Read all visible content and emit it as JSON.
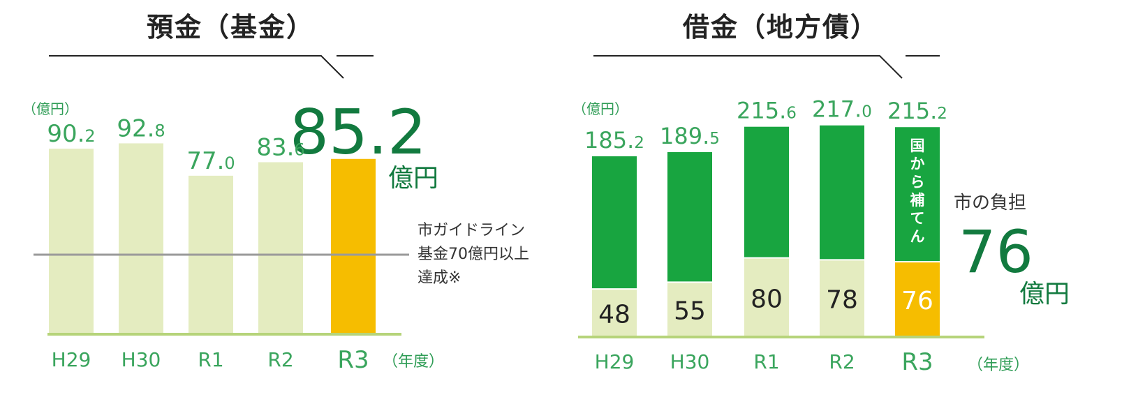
{
  "colors": {
    "light_bar": "#e4ecc0",
    "highlight_bar": "#f6bd00",
    "green_bar": "#18a540",
    "label_green": "#3aa55d",
    "dark_green": "#127a3f",
    "axis_line": "#b6d47a",
    "guide_line": "#9a9a9a"
  },
  "chart_data": [
    {
      "type": "bar",
      "title": "預金（基金）",
      "ylabel": "（億円）",
      "xlabel": "（年度）",
      "categories": [
        "H29",
        "H30",
        "R1",
        "R2",
        "R3"
      ],
      "values": [
        90.2,
        92.8,
        77.0,
        83.6,
        85.2
      ],
      "value_labels": [
        {
          "int": "90.",
          "dec": "2"
        },
        {
          "int": "92.",
          "dec": "8"
        },
        {
          "int": "77.",
          "dec": "0"
        },
        {
          "int": "83.",
          "dec": "6"
        }
      ],
      "highlight": {
        "category": "R3",
        "value_text": "85.2",
        "unit_text": "億円"
      },
      "reference_line": {
        "value": 70,
        "label_lines": [
          "市ガイドライン",
          "基金70億円以上",
          "達成※"
        ]
      }
    },
    {
      "type": "bar",
      "title": "借金（地方債）",
      "ylabel": "（億円）",
      "xlabel": "（年度）",
      "categories": [
        "H29",
        "H30",
        "R1",
        "R2",
        "R3"
      ],
      "values": [
        185.2,
        189.5,
        215.6,
        217.0,
        215.2
      ],
      "value_labels": [
        {
          "int": "185.",
          "dec": "2"
        },
        {
          "int": "189.",
          "dec": "5"
        },
        {
          "int": "215.",
          "dec": "6"
        },
        {
          "int": "217.",
          "dec": "0"
        },
        {
          "int": "215.",
          "dec": "2"
        }
      ],
      "series": [
        {
          "name": "市の負担",
          "values": [
            48,
            55,
            80,
            78,
            76
          ]
        },
        {
          "name": "国から補てん",
          "values": [
            137.2,
            134.5,
            135.6,
            139.0,
            139.2
          ]
        }
      ],
      "burden_labels": [
        "48",
        "55",
        "80",
        "78",
        "76"
      ],
      "upper_label": "国から補てん",
      "side_label": "市の負担",
      "highlight": {
        "category": "R3",
        "value_text": "76",
        "unit_text": "億円"
      }
    }
  ]
}
